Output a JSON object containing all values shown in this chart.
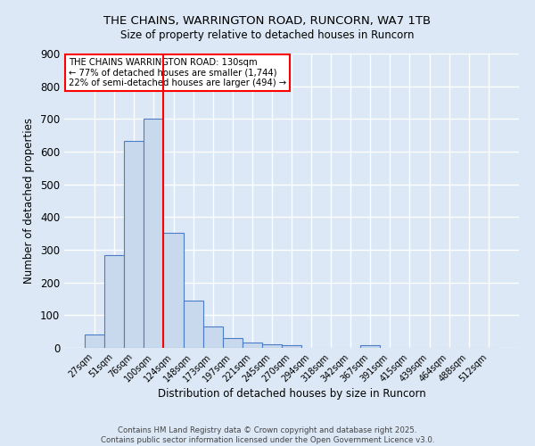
{
  "title_line1": "THE CHAINS, WARRINGTON ROAD, RUNCORN, WA7 1TB",
  "title_line2": "Size of property relative to detached houses in Runcorn",
  "xlabel": "Distribution of detached houses by size in Runcorn",
  "ylabel": "Number of detached properties",
  "bar_labels": [
    "27sqm",
    "51sqm",
    "76sqm",
    "100sqm",
    "124sqm",
    "148sqm",
    "173sqm",
    "197sqm",
    "221sqm",
    "245sqm",
    "270sqm",
    "294sqm",
    "318sqm",
    "342sqm",
    "367sqm",
    "391sqm",
    "415sqm",
    "439sqm",
    "464sqm",
    "488sqm",
    "512sqm"
  ],
  "bar_values": [
    42,
    283,
    633,
    700,
    352,
    145,
    65,
    30,
    17,
    12,
    8,
    0,
    0,
    0,
    7,
    0,
    0,
    0,
    0,
    0,
    0
  ],
  "bar_color": "#c9d9ed",
  "bar_edge_color": "#4a7cc7",
  "background_color": "#dce8f5",
  "grid_color": "#ffffff",
  "vline_color": "red",
  "vline_x_index": 4,
  "annotation_title": "THE CHAINS WARRINGTON ROAD: 130sqm",
  "annotation_line1": "← 77% of detached houses are smaller (1,744)",
  "annotation_line2": "22% of semi-detached houses are larger (494) →",
  "annotation_box_color": "#ffffff",
  "annotation_box_edge": "red",
  "ylim": [
    0,
    900
  ],
  "yticks": [
    0,
    100,
    200,
    300,
    400,
    500,
    600,
    700,
    800,
    900
  ],
  "footnote1": "Contains HM Land Registry data © Crown copyright and database right 2025.",
  "footnote2": "Contains public sector information licensed under the Open Government Licence v3.0."
}
